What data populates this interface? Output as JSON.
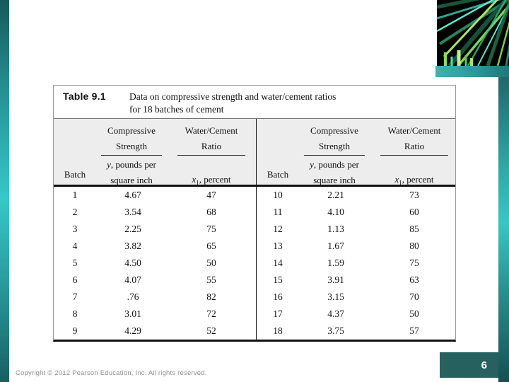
{
  "accent_colors": {
    "teal_bright": "#36c8c8",
    "teal_dark": "#17595c",
    "badge_background": "#266160"
  },
  "table": {
    "label": "Table 9.1",
    "caption_line1": "Data on compressive strength and water/cement ratios",
    "caption_line2": "for 18 batches of cement",
    "headers": {
      "batch": "Batch",
      "strength_line1": "Compressive",
      "strength_line2": "Strength",
      "strength_var": "y",
      "strength_sub_rest": ", pounds per",
      "strength_sub_line2": "square inch",
      "ratio_line1": "Water/Cement",
      "ratio_line2": "Ratio",
      "ratio_var": "x",
      "ratio_var_subscript": "1",
      "ratio_sub_rest": ", percent"
    },
    "left_rows": [
      [
        "1",
        "4.67",
        "47"
      ],
      [
        "2",
        "3.54",
        "68"
      ],
      [
        "3",
        "2.25",
        "75"
      ],
      [
        "4",
        "3.82",
        "65"
      ],
      [
        "5",
        "4.50",
        "50"
      ],
      [
        "6",
        "4.07",
        "55"
      ],
      [
        "7",
        ".76",
        "82"
      ],
      [
        "8",
        "3.01",
        "72"
      ],
      [
        "9",
        "4.29",
        "52"
      ]
    ],
    "right_rows": [
      [
        "10",
        "2.21",
        "73"
      ],
      [
        "11",
        "4.10",
        "60"
      ],
      [
        "12",
        "1.13",
        "85"
      ],
      [
        "13",
        "1.67",
        "80"
      ],
      [
        "14",
        "1.59",
        "75"
      ],
      [
        "15",
        "3.91",
        "63"
      ],
      [
        "16",
        "3.15",
        "70"
      ],
      [
        "17",
        "4.37",
        "50"
      ],
      [
        "18",
        "3.75",
        "57"
      ]
    ]
  },
  "chart_data": {
    "type": "table",
    "title": "Table 9.1 Data on compressive strength and water/cement ratios for 18 batches of cement",
    "columns": [
      "Batch",
      "Compressive Strength y, pounds per square inch",
      "Water/Cement Ratio x1, percent"
    ],
    "rows": [
      [
        1,
        4.67,
        47
      ],
      [
        2,
        3.54,
        68
      ],
      [
        3,
        2.25,
        75
      ],
      [
        4,
        3.82,
        65
      ],
      [
        5,
        4.5,
        50
      ],
      [
        6,
        4.07,
        55
      ],
      [
        7,
        0.76,
        82
      ],
      [
        8,
        3.01,
        72
      ],
      [
        9,
        4.29,
        52
      ],
      [
        10,
        2.21,
        73
      ],
      [
        11,
        4.1,
        60
      ],
      [
        12,
        1.13,
        85
      ],
      [
        13,
        1.67,
        80
      ],
      [
        14,
        1.59,
        75
      ],
      [
        15,
        3.91,
        63
      ],
      [
        16,
        3.15,
        70
      ],
      [
        17,
        4.37,
        50
      ],
      [
        18,
        3.75,
        57
      ]
    ]
  },
  "footer": {
    "copyright": "Copyright © 2012 Pearson Education, Inc. All rights reserved.",
    "page_number": "6"
  }
}
